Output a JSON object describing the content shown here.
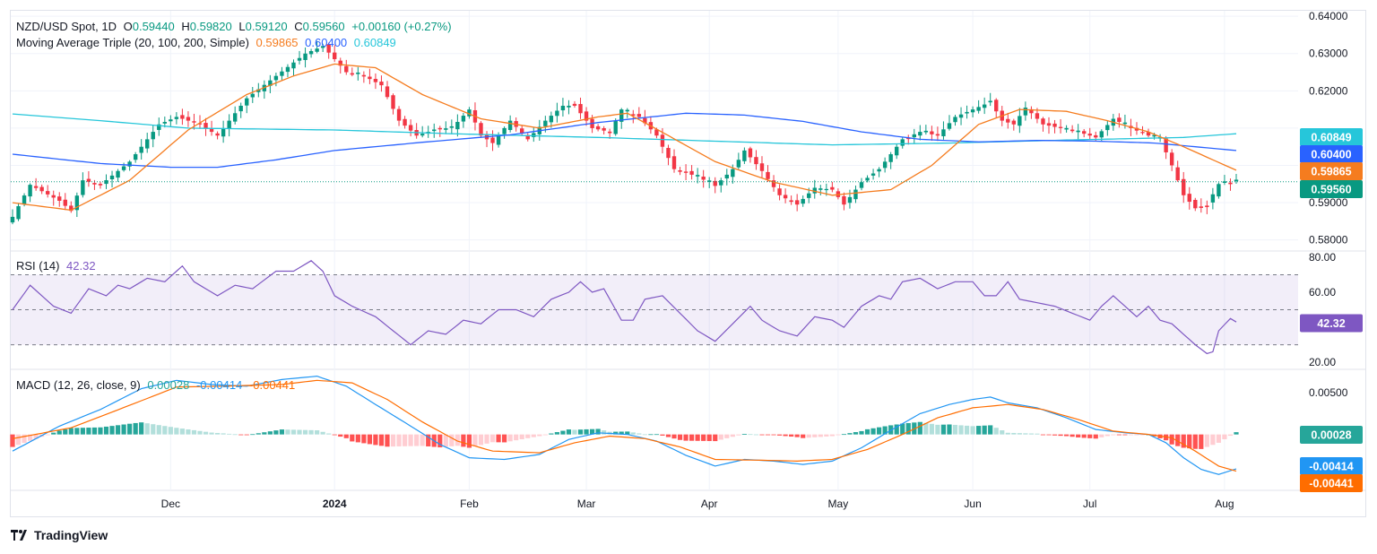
{
  "header": {
    "symbol": "NZD/USD Spot, 1D",
    "open_label": "O",
    "open": "0.59440",
    "high_label": "H",
    "high": "0.59820",
    "low_label": "L",
    "low": "0.59120",
    "close_label": "C",
    "close": "0.59560",
    "change": "+0.00160 (+0.27%)",
    "ma_label": "Moving Average Triple (20, 100, 200, Simple)",
    "ma20": "0.59865",
    "ma100": "0.60400",
    "ma200": "0.60849"
  },
  "rsi_header": {
    "label": "RSI (14)",
    "value": "42.32"
  },
  "macd_header": {
    "label": "MACD (12, 26, close, 9)",
    "hist": "0.00028",
    "macd": "-0.00414",
    "signal": "-0.00441"
  },
  "brand": {
    "name": "TradingView"
  },
  "colors": {
    "up": "#089981",
    "down": "#f23645",
    "ma20": "#f57c1f",
    "ma100": "#2962ff",
    "ma200": "#26c6da",
    "rsi": "#7e57c2",
    "macd_line": "#2196f3",
    "signal_line": "#ff6d00",
    "hist_up_strong": "#26a69a",
    "hist_up_weak": "#b2dfdb",
    "hist_down_strong": "#ff5252",
    "hist_down_weak": "#ffcdd2"
  },
  "chart_data": [
    {
      "type": "candlestick",
      "title": "NZD/USD Spot, 1D",
      "ylim": [
        0.578,
        0.641
      ],
      "ytick_labels": [
        "0.64000",
        "0.63000",
        "0.62000",
        "0.59000",
        "0.58000"
      ],
      "xtick_labels": [
        "Dec",
        "2024",
        "Feb",
        "Mar",
        "Apr",
        "May",
        "Jun",
        "Jul",
        "Aug"
      ],
      "x_months": [
        {
          "label": "Dec",
          "index": 27
        },
        {
          "label": "2024",
          "index": 55
        },
        {
          "label": "Feb",
          "index": 78
        },
        {
          "label": "Mar",
          "index": 98
        },
        {
          "label": "Apr",
          "index": 119
        },
        {
          "label": "May",
          "index": 141
        },
        {
          "label": "Jun",
          "index": 164
        },
        {
          "label": "Jul",
          "index": 184
        },
        {
          "label": "Aug",
          "index": 207
        }
      ],
      "close_anchors": [
        [
          0,
          0.5862
        ],
        [
          3,
          0.5948
        ],
        [
          8,
          0.5905
        ],
        [
          10,
          0.5878
        ],
        [
          12,
          0.596
        ],
        [
          15,
          0.5948
        ],
        [
          18,
          0.5985
        ],
        [
          20,
          0.601
        ],
        [
          25,
          0.611
        ],
        [
          28,
          0.613
        ],
        [
          32,
          0.611
        ],
        [
          35,
          0.608
        ],
        [
          40,
          0.618
        ],
        [
          45,
          0.624
        ],
        [
          50,
          0.63
        ],
        [
          53,
          0.632
        ],
        [
          57,
          0.625
        ],
        [
          60,
          0.624
        ],
        [
          63,
          0.6215
        ],
        [
          66,
          0.612
        ],
        [
          69,
          0.608
        ],
        [
          72,
          0.6095
        ],
        [
          75,
          0.61
        ],
        [
          78,
          0.615
        ],
        [
          80,
          0.608
        ],
        [
          82,
          0.606
        ],
        [
          85,
          0.612
        ],
        [
          88,
          0.607
        ],
        [
          91,
          0.612
        ],
        [
          94,
          0.616
        ],
        [
          96,
          0.616
        ],
        [
          99,
          0.61
        ],
        [
          102,
          0.609
        ],
        [
          104,
          0.615
        ],
        [
          107,
          0.613
        ],
        [
          110,
          0.608
        ],
        [
          113,
          0.599
        ],
        [
          117,
          0.597
        ],
        [
          120,
          0.5945
        ],
        [
          123,
          0.599
        ],
        [
          125,
          0.604
        ],
        [
          128,
          0.5985
        ],
        [
          131,
          0.592
        ],
        [
          134,
          0.5895
        ],
        [
          137,
          0.594
        ],
        [
          140,
          0.5935
        ],
        [
          142,
          0.5895
        ],
        [
          145,
          0.5955
        ],
        [
          148,
          0.599
        ],
        [
          152,
          0.607
        ],
        [
          155,
          0.609
        ],
        [
          158,
          0.608
        ],
        [
          161,
          0.613
        ],
        [
          164,
          0.615
        ],
        [
          167,
          0.617
        ],
        [
          169,
          0.612
        ],
        [
          171,
          0.611
        ],
        [
          173,
          0.6155
        ],
        [
          176,
          0.611
        ],
        [
          179,
          0.61
        ],
        [
          182,
          0.609
        ],
        [
          185,
          0.6075
        ],
        [
          188,
          0.6125
        ],
        [
          191,
          0.61
        ],
        [
          194,
          0.608
        ],
        [
          196,
          0.607
        ],
        [
          198,
          0.6
        ],
        [
          200,
          0.592
        ],
        [
          202,
          0.5885
        ],
        [
          204,
          0.5895
        ],
        [
          206,
          0.595
        ],
        [
          208,
          0.5955
        ],
        [
          209,
          0.5956
        ]
      ],
      "ma20_anchors": [
        [
          0,
          0.59
        ],
        [
          10,
          0.588
        ],
        [
          20,
          0.596
        ],
        [
          30,
          0.6095
        ],
        [
          40,
          0.619
        ],
        [
          48,
          0.624
        ],
        [
          55,
          0.6272
        ],
        [
          62,
          0.6262
        ],
        [
          70,
          0.619
        ],
        [
          80,
          0.6125
        ],
        [
          90,
          0.61
        ],
        [
          100,
          0.613
        ],
        [
          105,
          0.614
        ],
        [
          112,
          0.608
        ],
        [
          120,
          0.601
        ],
        [
          130,
          0.5955
        ],
        [
          140,
          0.592
        ],
        [
          150,
          0.5935
        ],
        [
          157,
          0.6
        ],
        [
          165,
          0.611
        ],
        [
          172,
          0.615
        ],
        [
          180,
          0.6145
        ],
        [
          187,
          0.612
        ],
        [
          194,
          0.609
        ],
        [
          200,
          0.605
        ],
        [
          209,
          0.5987
        ]
      ],
      "ma100_anchors": [
        [
          0,
          0.603
        ],
        [
          15,
          0.6005
        ],
        [
          27,
          0.5995
        ],
        [
          35,
          0.5995
        ],
        [
          45,
          0.6015
        ],
        [
          55,
          0.604
        ],
        [
          70,
          0.6062
        ],
        [
          85,
          0.6082
        ],
        [
          100,
          0.6115
        ],
        [
          115,
          0.614
        ],
        [
          125,
          0.6135
        ],
        [
          135,
          0.6118
        ],
        [
          145,
          0.609
        ],
        [
          155,
          0.607
        ],
        [
          165,
          0.6063
        ],
        [
          175,
          0.6067
        ],
        [
          185,
          0.6065
        ],
        [
          195,
          0.606
        ],
        [
          209,
          0.604
        ]
      ],
      "ma200_anchors": [
        [
          0,
          0.6138
        ],
        [
          15,
          0.612
        ],
        [
          30,
          0.61
        ],
        [
          55,
          0.6095
        ],
        [
          75,
          0.6085
        ],
        [
          100,
          0.6075
        ],
        [
          120,
          0.6065
        ],
        [
          140,
          0.6055
        ],
        [
          160,
          0.606
        ],
        [
          180,
          0.6068
        ],
        [
          200,
          0.6075
        ],
        [
          209,
          0.6085
        ]
      ],
      "last_price": 0.5956,
      "price_labels": [
        "0.60849",
        "0.60400",
        "0.59865",
        "0.59560"
      ]
    },
    {
      "type": "line",
      "title": "RSI (14)",
      "ylim": [
        17,
        82
      ],
      "ytick_labels": [
        "80.00",
        "60.00",
        "20.00"
      ],
      "bands": [
        70,
        50,
        30
      ],
      "anchors": [
        [
          0,
          50
        ],
        [
          3,
          64
        ],
        [
          7,
          52
        ],
        [
          10,
          48
        ],
        [
          13,
          62
        ],
        [
          16,
          58
        ],
        [
          18,
          64
        ],
        [
          20,
          62
        ],
        [
          23,
          68
        ],
        [
          26,
          66
        ],
        [
          29,
          75
        ],
        [
          31,
          66
        ],
        [
          33,
          62
        ],
        [
          35,
          58
        ],
        [
          38,
          64
        ],
        [
          41,
          62
        ],
        [
          45,
          72
        ],
        [
          48,
          72
        ],
        [
          51,
          78
        ],
        [
          53,
          72
        ],
        [
          55,
          58
        ],
        [
          58,
          52
        ],
        [
          62,
          46
        ],
        [
          65,
          38
        ],
        [
          68,
          30
        ],
        [
          71,
          38
        ],
        [
          74,
          36
        ],
        [
          77,
          44
        ],
        [
          80,
          42
        ],
        [
          83,
          50
        ],
        [
          86,
          50
        ],
        [
          89,
          46
        ],
        [
          92,
          56
        ],
        [
          95,
          60
        ],
        [
          97,
          66
        ],
        [
          99,
          60
        ],
        [
          101,
          62
        ],
        [
          104,
          44
        ],
        [
          106,
          44
        ],
        [
          108,
          56
        ],
        [
          111,
          58
        ],
        [
          114,
          48
        ],
        [
          117,
          38
        ],
        [
          120,
          32
        ],
        [
          123,
          42
        ],
        [
          126,
          52
        ],
        [
          128,
          44
        ],
        [
          131,
          38
        ],
        [
          134,
          35
        ],
        [
          137,
          46
        ],
        [
          140,
          44
        ],
        [
          142,
          40
        ],
        [
          145,
          52
        ],
        [
          148,
          58
        ],
        [
          150,
          56
        ],
        [
          152,
          66
        ],
        [
          155,
          68
        ],
        [
          158,
          62
        ],
        [
          161,
          66
        ],
        [
          164,
          66
        ],
        [
          166,
          58
        ],
        [
          168,
          58
        ],
        [
          170,
          66
        ],
        [
          172,
          56
        ],
        [
          175,
          54
        ],
        [
          178,
          52
        ],
        [
          181,
          48
        ],
        [
          184,
          44
        ],
        [
          186,
          52
        ],
        [
          188,
          58
        ],
        [
          190,
          52
        ],
        [
          192,
          46
        ],
        [
          194,
          52
        ],
        [
          196,
          44
        ],
        [
          198,
          42
        ],
        [
          200,
          36
        ],
        [
          202,
          30
        ],
        [
          204,
          25
        ],
        [
          205,
          26
        ],
        [
          206,
          38
        ],
        [
          208,
          45
        ],
        [
          209,
          43
        ]
      ],
      "value": 42.32
    },
    {
      "type": "macd",
      "title": "MACD (12, 26, close, 9)",
      "ylim": [
        -0.0065,
        0.0075
      ],
      "ytick_labels": [
        "0.00500"
      ],
      "macd_anchors": [
        [
          0,
          -0.002
        ],
        [
          8,
          0.001
        ],
        [
          15,
          0.003
        ],
        [
          22,
          0.0055
        ],
        [
          28,
          0.0065
        ],
        [
          34,
          0.006
        ],
        [
          40,
          0.0058
        ],
        [
          46,
          0.0066
        ],
        [
          52,
          0.007
        ],
        [
          57,
          0.0058
        ],
        [
          62,
          0.0036
        ],
        [
          68,
          0.001
        ],
        [
          73,
          -0.0012
        ],
        [
          78,
          -0.0028
        ],
        [
          84,
          -0.003
        ],
        [
          90,
          -0.0024
        ],
        [
          95,
          -0.0006
        ],
        [
          100,
          0.0002
        ],
        [
          105,
          0.0
        ],
        [
          110,
          -0.0008
        ],
        [
          115,
          -0.0025
        ],
        [
          120,
          -0.0038
        ],
        [
          125,
          -0.003
        ],
        [
          130,
          -0.0032
        ],
        [
          135,
          -0.0036
        ],
        [
          140,
          -0.0032
        ],
        [
          145,
          -0.0016
        ],
        [
          150,
          0.0005
        ],
        [
          155,
          0.0025
        ],
        [
          160,
          0.0036
        ],
        [
          164,
          0.0042
        ],
        [
          167,
          0.0045
        ],
        [
          170,
          0.0038
        ],
        [
          175,
          0.0032
        ],
        [
          180,
          0.002
        ],
        [
          185,
          0.0006
        ],
        [
          190,
          0.0002
        ],
        [
          194,
          0.0
        ],
        [
          197,
          -0.001
        ],
        [
          200,
          -0.0028
        ],
        [
          203,
          -0.0042
        ],
        [
          206,
          -0.0048
        ],
        [
          209,
          -0.00414
        ]
      ],
      "signal_anchors": [
        [
          0,
          -0.0005
        ],
        [
          10,
          0.0008
        ],
        [
          20,
          0.0035
        ],
        [
          28,
          0.0057
        ],
        [
          36,
          0.0058
        ],
        [
          46,
          0.006
        ],
        [
          52,
          0.0065
        ],
        [
          58,
          0.0062
        ],
        [
          64,
          0.0042
        ],
        [
          70,
          0.0015
        ],
        [
          76,
          -0.0008
        ],
        [
          82,
          -0.002
        ],
        [
          90,
          -0.0022
        ],
        [
          96,
          -0.001
        ],
        [
          102,
          -0.0002
        ],
        [
          108,
          -0.0005
        ],
        [
          114,
          -0.0015
        ],
        [
          120,
          -0.003
        ],
        [
          128,
          -0.0031
        ],
        [
          134,
          -0.0032
        ],
        [
          140,
          -0.003
        ],
        [
          146,
          -0.0018
        ],
        [
          152,
          0.0
        ],
        [
          158,
          0.002
        ],
        [
          164,
          0.0032
        ],
        [
          170,
          0.0036
        ],
        [
          176,
          0.003
        ],
        [
          182,
          0.0018
        ],
        [
          188,
          0.0004
        ],
        [
          194,
          0.0
        ],
        [
          198,
          -0.0004
        ],
        [
          202,
          -0.002
        ],
        [
          206,
          -0.0038
        ],
        [
          209,
          -0.00441
        ]
      ],
      "hist_value": 0.00028,
      "macd_value": -0.00414,
      "signal_value": -0.00441,
      "price_labels": [
        "0.00028",
        "-0.00414",
        "-0.00441"
      ]
    }
  ]
}
